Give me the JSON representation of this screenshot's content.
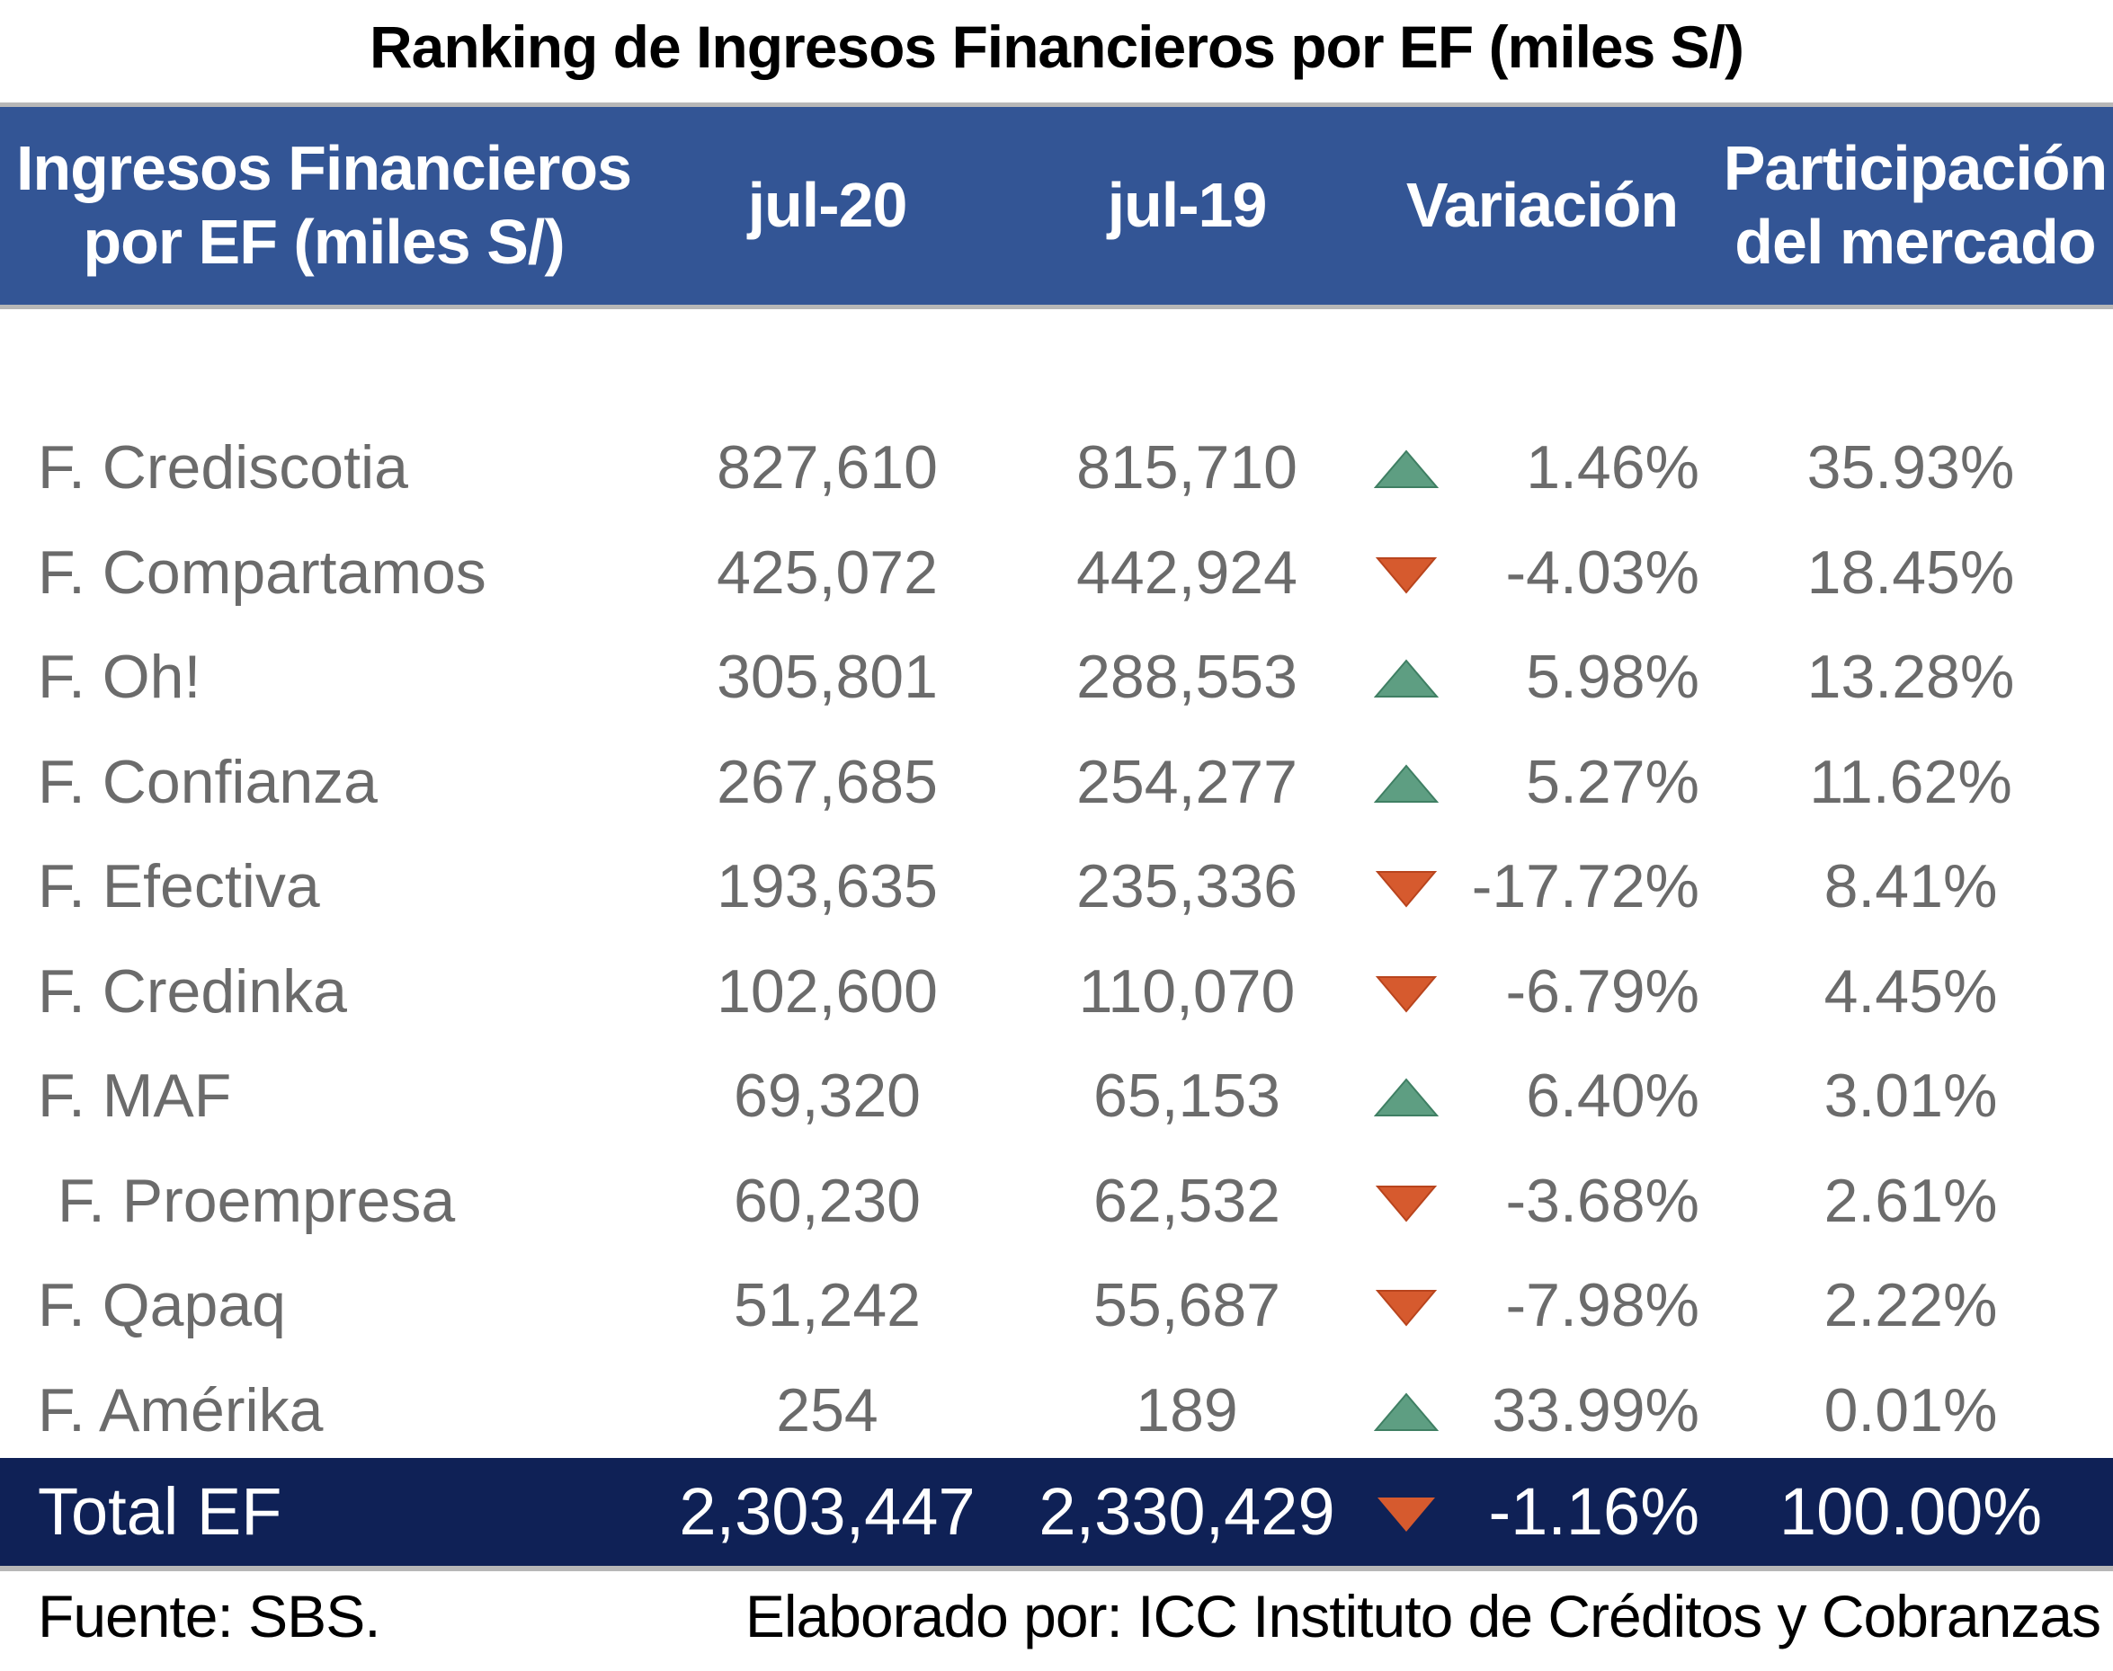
{
  "title": "Ranking de Ingresos Financieros por EF (miles S/)",
  "colors": {
    "header_bg": "#335595",
    "total_bg": "#0f2156",
    "up": "#5e9e82",
    "down": "#d65a2e",
    "text": "#6b6b6b"
  },
  "header": {
    "col_name_line1": "Ingresos Financieros",
    "col_name_line2": "por EF (miles S/)",
    "col_jul20": "jul-20",
    "col_jul19": "jul-19",
    "col_variacion": "Variación",
    "col_part_line1": "Participación",
    "col_part_line2": "del mercado"
  },
  "rows": [
    {
      "name": "F. Crediscotia",
      "jul20": "827,610",
      "jul19": "815,710",
      "trend": "up-arrow-icon",
      "variacion": "1.46%",
      "participacion": "35.93%"
    },
    {
      "name": "F. Compartamos",
      "jul20": "425,072",
      "jul19": "442,924",
      "trend": "down-arrow-icon",
      "variacion": "-4.03%",
      "participacion": "18.45%"
    },
    {
      "name": "F. Oh!",
      "jul20": "305,801",
      "jul19": "288,553",
      "trend": "up-arrow-icon",
      "variacion": "5.98%",
      "participacion": "13.28%"
    },
    {
      "name": "F. Confianza",
      "jul20": "267,685",
      "jul19": "254,277",
      "trend": "up-arrow-icon",
      "variacion": "5.27%",
      "participacion": "11.62%"
    },
    {
      "name": "F. Efectiva",
      "jul20": "193,635",
      "jul19": "235,336",
      "trend": "down-arrow-icon",
      "variacion": "-17.72%",
      "participacion": "8.41%"
    },
    {
      "name": "F. Credinka",
      "jul20": "102,600",
      "jul19": "110,070",
      "trend": "down-arrow-icon",
      "variacion": "-6.79%",
      "participacion": "4.45%"
    },
    {
      "name": "F. MAF",
      "jul20": "69,320",
      "jul19": "65,153",
      "trend": "up-arrow-icon",
      "variacion": "6.40%",
      "participacion": "3.01%"
    },
    {
      "name": "F. Proempresa",
      "jul20": "60,230",
      "jul19": "62,532",
      "trend": "down-arrow-icon",
      "variacion": "-3.68%",
      "participacion": "2.61%"
    },
    {
      "name": "F. Qapaq",
      "jul20": "51,242",
      "jul19": "55,687",
      "trend": "down-arrow-icon",
      "variacion": "-7.98%",
      "participacion": "2.22%"
    },
    {
      "name": "F. Amérika",
      "jul20": "254",
      "jul19": "189",
      "trend": "up-arrow-icon",
      "variacion": "33.99%",
      "participacion": "0.01%"
    }
  ],
  "total": {
    "name": "Total EF",
    "jul20": "2,303,447",
    "jul19": "2,330,429",
    "trend": "down-arrow-icon",
    "variacion": "-1.16%",
    "participacion": "100.00%"
  },
  "footer": {
    "source": "Fuente: SBS.",
    "credit": "Elaborado por: ICC Instituto de Créditos y Cobranzas"
  },
  "chart_data": {
    "type": "table",
    "title": "Ranking de Ingresos Financieros por EF (miles S/)",
    "columns": [
      "Ingresos Financieros por EF (miles S/)",
      "jul-20",
      "jul-19",
      "Variación",
      "Participación del mercado"
    ],
    "rows": [
      [
        "F. Crediscotia",
        827610,
        815710,
        1.46,
        35.93
      ],
      [
        "F. Compartamos",
        425072,
        442924,
        -4.03,
        18.45
      ],
      [
        "F. Oh!",
        305801,
        288553,
        5.98,
        13.28
      ],
      [
        "F. Confianza",
        267685,
        254277,
        5.27,
        11.62
      ],
      [
        "F. Efectiva",
        193635,
        235336,
        -17.72,
        8.41
      ],
      [
        "F. Credinka",
        102600,
        110070,
        -6.79,
        4.45
      ],
      [
        "F. MAF",
        69320,
        65153,
        6.4,
        3.01
      ],
      [
        "F. Proempresa",
        60230,
        62532,
        -3.68,
        2.61
      ],
      [
        "F. Qapaq",
        51242,
        55687,
        -7.98,
        2.22
      ],
      [
        "F. Amérika",
        254,
        189,
        33.99,
        0.01
      ],
      [
        "Total EF",
        2303447,
        2330429,
        -1.16,
        100.0
      ]
    ]
  }
}
